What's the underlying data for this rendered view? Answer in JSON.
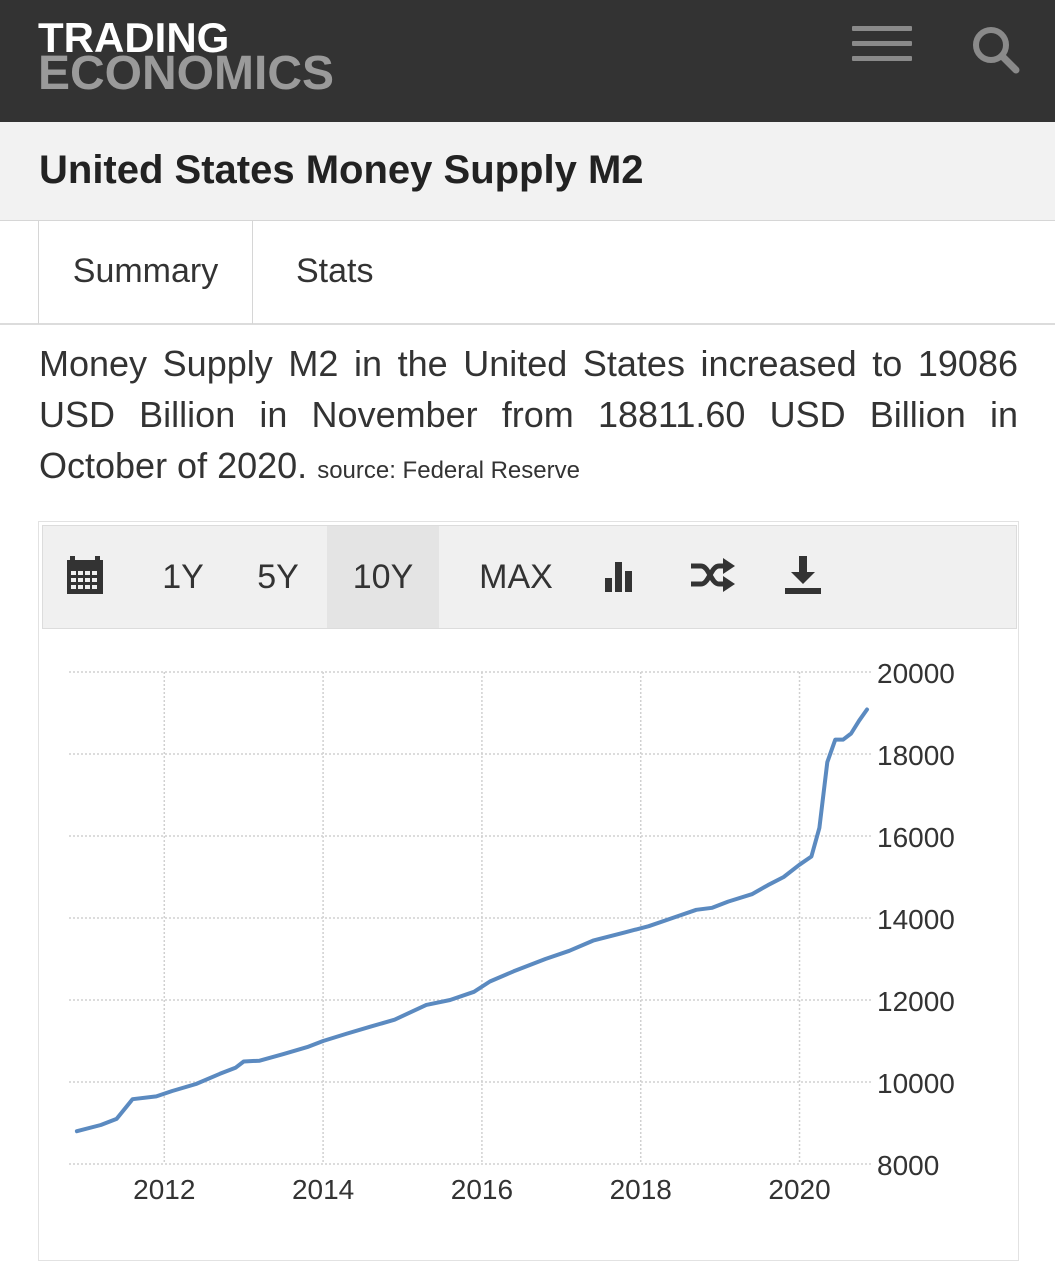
{
  "header": {
    "logo_line1": "TRADING",
    "logo_line2": "ECONOMICS",
    "menu_icon": "hamburger-menu-icon",
    "search_icon": "search-icon"
  },
  "page_title": "United States Money Supply M2",
  "tabs": [
    {
      "label": "Summary",
      "active": true
    },
    {
      "label": "Stats",
      "active": false
    }
  ],
  "description": {
    "text": "Money Supply M2 in the United States increased to 19086 USD Billion in November from 18811.60 USD Billion in October of 2020.",
    "source": "source: Federal Reserve"
  },
  "toolbar": {
    "calendar_icon": "calendar-icon",
    "ranges": [
      "1Y",
      "5Y",
      "10Y",
      "MAX"
    ],
    "active_range": "10Y",
    "bar_chart_icon": "bar-chart-icon",
    "shuffle_icon": "shuffle-icon",
    "download_icon": "download-icon"
  },
  "colors": {
    "header_bg": "#333333",
    "line": "#5b8ac0",
    "grid": "#d0d0d0"
  },
  "chart_data": {
    "type": "line",
    "title": "",
    "xlabel": "",
    "ylabel": "",
    "x_ticks": [
      "2012",
      "2014",
      "2016",
      "2018",
      "2020"
    ],
    "y_ticks": [
      8000,
      10000,
      12000,
      14000,
      16000,
      18000,
      20000
    ],
    "ylim": [
      8000,
      20000
    ],
    "xlim": [
      2010.8,
      2020.9
    ],
    "y_axis_position": "right",
    "grid": true,
    "series": [
      {
        "values": [
          [
            2010.9,
            8800
          ],
          [
            2011.2,
            8950
          ],
          [
            2011.4,
            9100
          ],
          [
            2011.6,
            9580
          ],
          [
            2011.9,
            9650
          ],
          [
            2012.1,
            9780
          ],
          [
            2012.4,
            9950
          ],
          [
            2012.7,
            10200
          ],
          [
            2012.9,
            10350
          ],
          [
            2013.0,
            10500
          ],
          [
            2013.2,
            10520
          ],
          [
            2013.5,
            10680
          ],
          [
            2013.8,
            10850
          ],
          [
            2014.0,
            11000
          ],
          [
            2014.3,
            11180
          ],
          [
            2014.6,
            11350
          ],
          [
            2014.9,
            11520
          ],
          [
            2015.1,
            11700
          ],
          [
            2015.3,
            11880
          ],
          [
            2015.6,
            12000
          ],
          [
            2015.9,
            12200
          ],
          [
            2016.1,
            12450
          ],
          [
            2016.4,
            12700
          ],
          [
            2016.8,
            13000
          ],
          [
            2017.1,
            13200
          ],
          [
            2017.4,
            13450
          ],
          [
            2017.8,
            13650
          ],
          [
            2018.1,
            13800
          ],
          [
            2018.4,
            14000
          ],
          [
            2018.7,
            14200
          ],
          [
            2018.9,
            14250
          ],
          [
            2019.1,
            14400
          ],
          [
            2019.4,
            14580
          ],
          [
            2019.6,
            14800
          ],
          [
            2019.8,
            15000
          ],
          [
            2020.0,
            15300
          ],
          [
            2020.15,
            15500
          ],
          [
            2020.25,
            16200
          ],
          [
            2020.35,
            17800
          ],
          [
            2020.45,
            18350
          ],
          [
            2020.55,
            18350
          ],
          [
            2020.65,
            18500
          ],
          [
            2020.75,
            18812
          ],
          [
            2020.85,
            19086
          ]
        ]
      }
    ]
  }
}
